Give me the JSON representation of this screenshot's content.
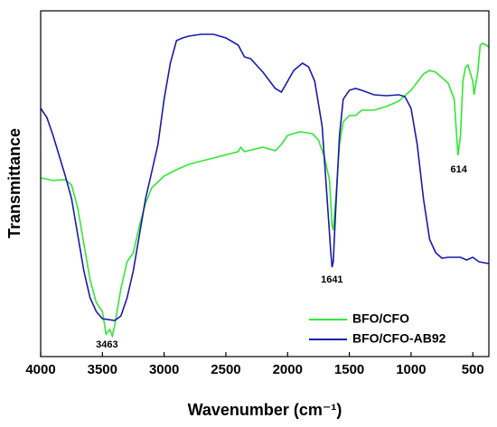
{
  "chart_data": {
    "type": "line",
    "xlabel": "Wavenumber (cm⁻¹)",
    "ylabel": "Transmittance",
    "xlim": [
      4000,
      370
    ],
    "xticks": [
      4000,
      3500,
      3000,
      2500,
      2000,
      1500,
      1000,
      500
    ],
    "ylim": [
      0,
      383
    ],
    "legend": "lower right",
    "annotations": [
      "3463",
      "1641",
      "614"
    ],
    "series": [
      {
        "name": "BFO/CFO",
        "color": "#33e633",
        "x": [
          4000,
          3900,
          3800,
          3750,
          3700,
          3650,
          3600,
          3550,
          3500,
          3470,
          3440,
          3420,
          3400,
          3350,
          3300,
          3250,
          3200,
          3150,
          3100,
          3000,
          2900,
          2800,
          2600,
          2400,
          2380,
          2350,
          2200,
          2100,
          2050,
          2000,
          1900,
          1800,
          1750,
          1700,
          1660,
          1640,
          1630,
          1610,
          1580,
          1550,
          1500,
          1450,
          1400,
          1300,
          1200,
          1100,
          1000,
          900,
          850,
          800,
          700,
          650,
          620,
          600,
          580,
          560,
          540,
          500,
          490,
          460,
          440,
          420,
          370
        ],
        "values": [
          198,
          195,
          196,
          190,
          165,
          125,
          85,
          60,
          50,
          25,
          30,
          23,
          35,
          75,
          105,
          115,
          145,
          170,
          187,
          200,
          207,
          213,
          220,
          227,
          232,
          227,
          232,
          228,
          235,
          245,
          249,
          247,
          240,
          220,
          195,
          145,
          140,
          175,
          235,
          260,
          267,
          267,
          273,
          273,
          277,
          283,
          295,
          313,
          317,
          315,
          303,
          285,
          223,
          245,
          305,
          320,
          323,
          305,
          290,
          315,
          345,
          347,
          343
        ]
      },
      {
        "name": "BFO/CFO-AB92",
        "color": "#1a1aa8",
        "x": [
          4000,
          3950,
          3900,
          3800,
          3750,
          3700,
          3650,
          3600,
          3550,
          3500,
          3400,
          3350,
          3300,
          3250,
          3200,
          3150,
          3100,
          3050,
          3000,
          2950,
          2900,
          2850,
          2800,
          2700,
          2600,
          2500,
          2400,
          2350,
          2300,
          2200,
          2100,
          2050,
          2000,
          1950,
          1880,
          1830,
          1780,
          1720,
          1680,
          1650,
          1640,
          1630,
          1610,
          1580,
          1550,
          1500,
          1450,
          1400,
          1300,
          1200,
          1100,
          1050,
          1000,
          950,
          900,
          850,
          800,
          750,
          700,
          600,
          550,
          500,
          450,
          370
        ],
        "values": [
          275,
          265,
          245,
          200,
          175,
          135,
          95,
          65,
          50,
          42,
          40,
          45,
          65,
          95,
          135,
          175,
          205,
          235,
          285,
          325,
          350,
          353,
          355,
          357,
          357,
          353,
          345,
          332,
          330,
          315,
          297,
          293,
          305,
          317,
          325,
          321,
          305,
          255,
          175,
          115,
          99,
          105,
          165,
          245,
          285,
          295,
          297,
          295,
          290,
          289,
          290,
          288,
          275,
          235,
          175,
          130,
          115,
          109,
          110,
          110,
          107,
          110,
          105,
          103
        ]
      }
    ]
  }
}
